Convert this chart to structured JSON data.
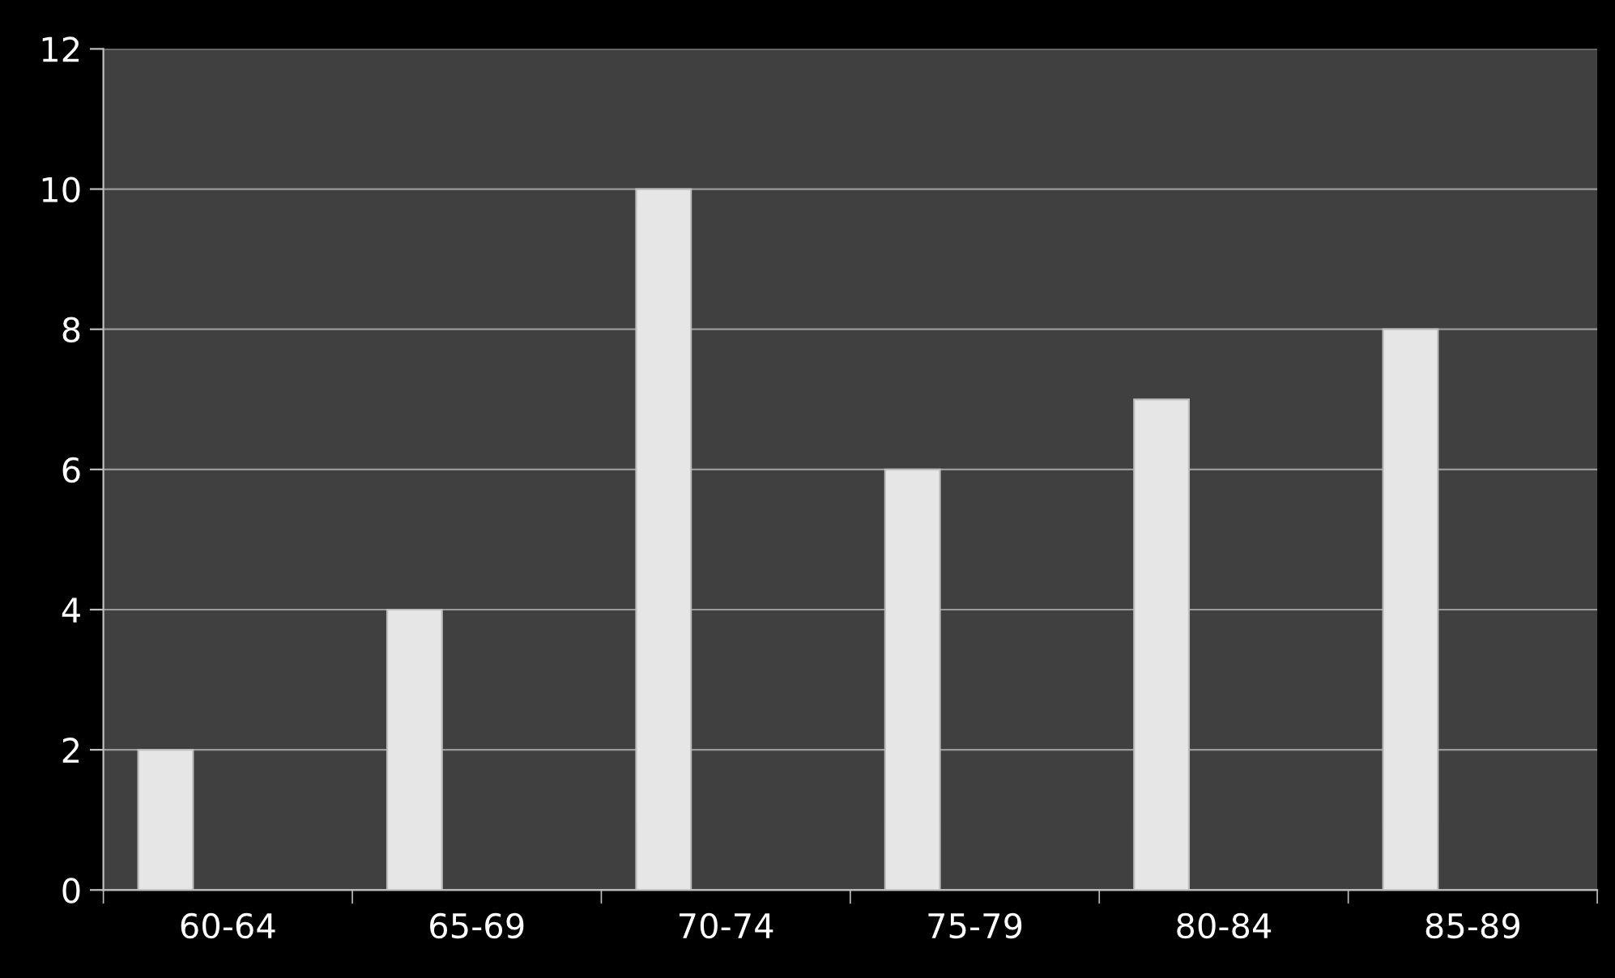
{
  "chart_data": {
    "type": "bar",
    "categories": [
      "60-64",
      "65-69",
      "70-74",
      "75-79",
      "80-84",
      "85-89"
    ],
    "values": [
      2,
      4,
      10,
      6,
      7,
      8
    ],
    "color": "#e6e6e6",
    "ylim": [
      0,
      12
    ],
    "yticks": [
      0,
      2,
      4,
      6,
      8,
      10,
      12
    ],
    "grid": "y"
  }
}
